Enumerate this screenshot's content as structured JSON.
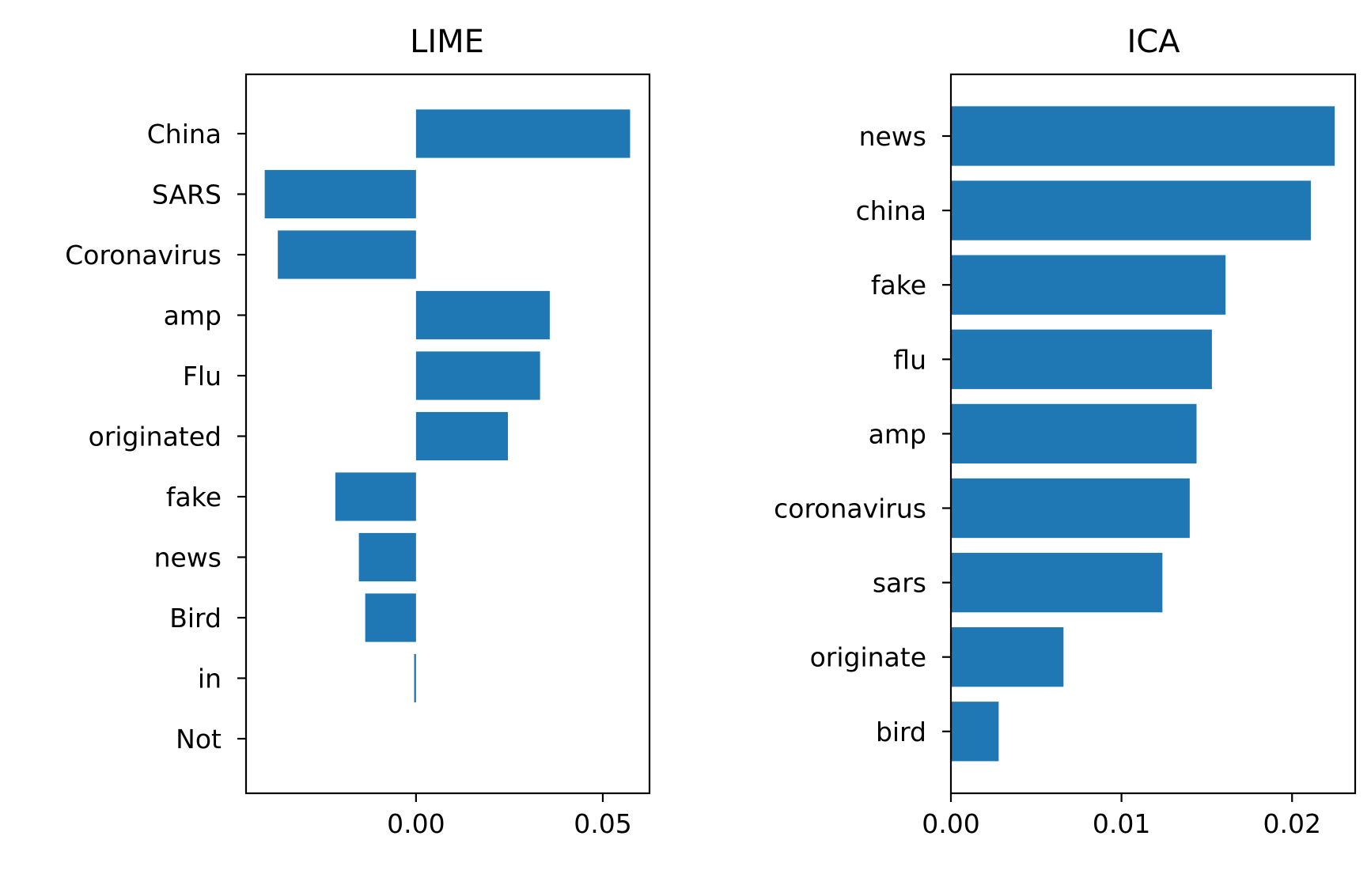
{
  "colors": {
    "bar": "#1f77b4"
  },
  "chart_data": [
    {
      "type": "bar",
      "orientation": "horizontal",
      "title": "LIME",
      "categories": [
        "China",
        "SARS",
        "Coronavirus",
        "amp",
        "Flu",
        "originated",
        "fake",
        "news",
        "Bird",
        "in",
        "Not"
      ],
      "values": [
        0.0573,
        -0.0405,
        -0.037,
        0.0358,
        0.0332,
        0.0246,
        -0.0216,
        -0.0153,
        -0.0136,
        -0.0005,
        0.0
      ],
      "xlim": [
        -0.0455,
        0.0625
      ],
      "xticks": [
        0.0,
        0.05
      ],
      "xtick_labels": [
        "0.00",
        "0.05"
      ],
      "xlabel": "",
      "ylabel": "",
      "grid": false
    },
    {
      "type": "bar",
      "orientation": "horizontal",
      "title": "ICA",
      "categories": [
        "news",
        "china",
        "fake",
        "flu",
        "amp",
        "coronavirus",
        "sars",
        "originate",
        "bird"
      ],
      "values": [
        0.0225,
        0.0211,
        0.0161,
        0.0153,
        0.0144,
        0.014,
        0.0124,
        0.0066,
        0.0028
      ],
      "xlim": [
        0.0,
        0.0237
      ],
      "xticks": [
        0.0,
        0.01,
        0.02
      ],
      "xtick_labels": [
        "0.00",
        "0.01",
        "0.02"
      ],
      "xlabel": "",
      "ylabel": "",
      "grid": false
    }
  ]
}
